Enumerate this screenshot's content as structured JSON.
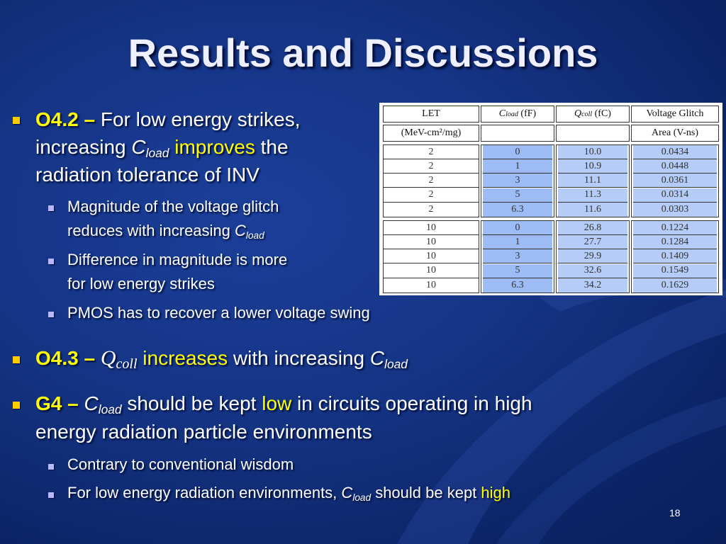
{
  "slide": {
    "title": "Results and Discussions",
    "page_number": "18"
  },
  "o42": {
    "code": "O4.2 –",
    "text_a": "For low energy strikes,",
    "text_b_pre": "increasing ",
    "c": "C",
    "load": "load",
    "improves": "improves",
    "text_b_post": " the",
    "text_c": "radiation tolerance of INV",
    "sub1_line1": "Magnitude of the voltage glitch",
    "sub1_line2_pre": "reduces with increasing ",
    "sub2_line1": "Difference in magnitude is more",
    "sub2_line2": "for low energy strikes",
    "sub3": "PMOS has to recover a lower voltage swing"
  },
  "o43": {
    "code": "O4.3 –",
    "q": "Q",
    "coll": "coll",
    "increases": "increases",
    "text_post": " with increasing ",
    "c": "C",
    "load": "load"
  },
  "g4": {
    "code": "G4 –",
    "c": "C",
    "load": "load",
    "text_a": " should be kept ",
    "low": "low",
    "text_b": " in circuits operating in high",
    "text_c": "energy radiation particle environments",
    "sub1": "Contrary to conventional wisdom",
    "sub2_pre": "For low energy radiation environments, ",
    "sub2_mid": " should be kept ",
    "high": "high"
  },
  "table": {
    "headers": {
      "let": "LET",
      "let_unit": "(MeV-cm²/mg)",
      "cload": "C",
      "cload_sub": "load",
      "cload_unit": "(fF)",
      "qcoll": "Q",
      "qcoll_sub": "coll",
      "qcoll_unit": "(fC)",
      "glitch": "Voltage Glitch",
      "glitch_unit": "Area (V-ns)"
    },
    "rows": [
      {
        "let": "2",
        "cload": "0",
        "qcoll": "10.0",
        "area": "0.0434"
      },
      {
        "let": "2",
        "cload": "1",
        "qcoll": "10.9",
        "area": "0.0448"
      },
      {
        "let": "2",
        "cload": "3",
        "qcoll": "11.1",
        "area": "0.0361"
      },
      {
        "let": "2",
        "cload": "5",
        "qcoll": "11.3",
        "area": "0.0314"
      },
      {
        "let": "2",
        "cload": "6.3",
        "qcoll": "11.6",
        "area": "0.0303"
      },
      {
        "let": "10",
        "cload": "0",
        "qcoll": "26.8",
        "area": "0.1224"
      },
      {
        "let": "10",
        "cload": "1",
        "qcoll": "27.7",
        "area": "0.1284"
      },
      {
        "let": "10",
        "cload": "3",
        "qcoll": "29.9",
        "area": "0.1409"
      },
      {
        "let": "10",
        "cload": "5",
        "qcoll": "32.6",
        "area": "0.1549"
      },
      {
        "let": "10",
        "cload": "6.3",
        "qcoll": "34.2",
        "area": "0.1629"
      }
    ]
  },
  "colors": {
    "background": "#143383",
    "highlight": "#ffff00",
    "bullet_main": "#ffcc00",
    "bullet_sub": "#b8b8ff"
  }
}
